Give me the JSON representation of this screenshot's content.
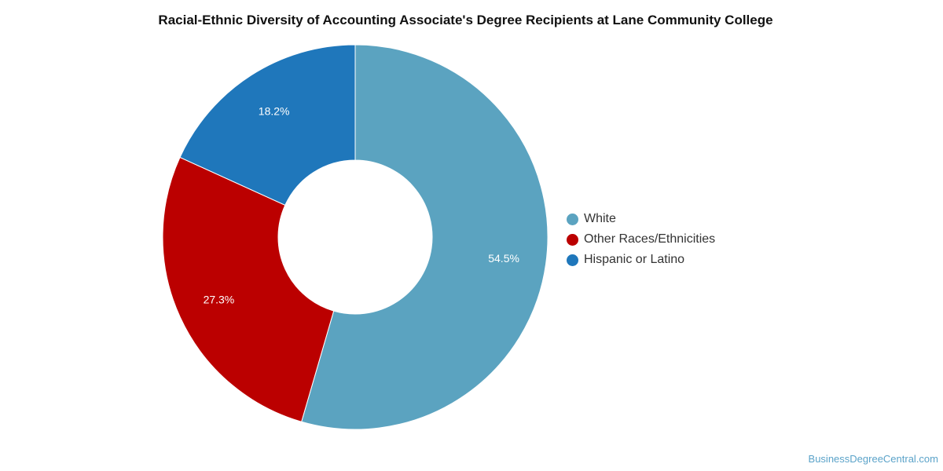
{
  "title": "Racial-Ethnic Diversity of Accounting Associate's Degree Recipients at Lane Community College",
  "credit": "BusinessDegreeCentral.com",
  "chart_data": {
    "type": "pie",
    "donut": true,
    "title": "Racial-Ethnic Diversity of Accounting Associate's Degree Recipients at Lane Community College",
    "legend_position": "right",
    "slices": [
      {
        "name": "White",
        "value": 54.5,
        "label": "54.5%",
        "color": "#5ba3c0"
      },
      {
        "name": "Other Races/Ethnicities",
        "value": 27.3,
        "label": "27.3%",
        "color": "#bb0000"
      },
      {
        "name": "Hispanic or Latino",
        "value": 18.2,
        "label": "18.2%",
        "color": "#1f77bb"
      }
    ]
  }
}
